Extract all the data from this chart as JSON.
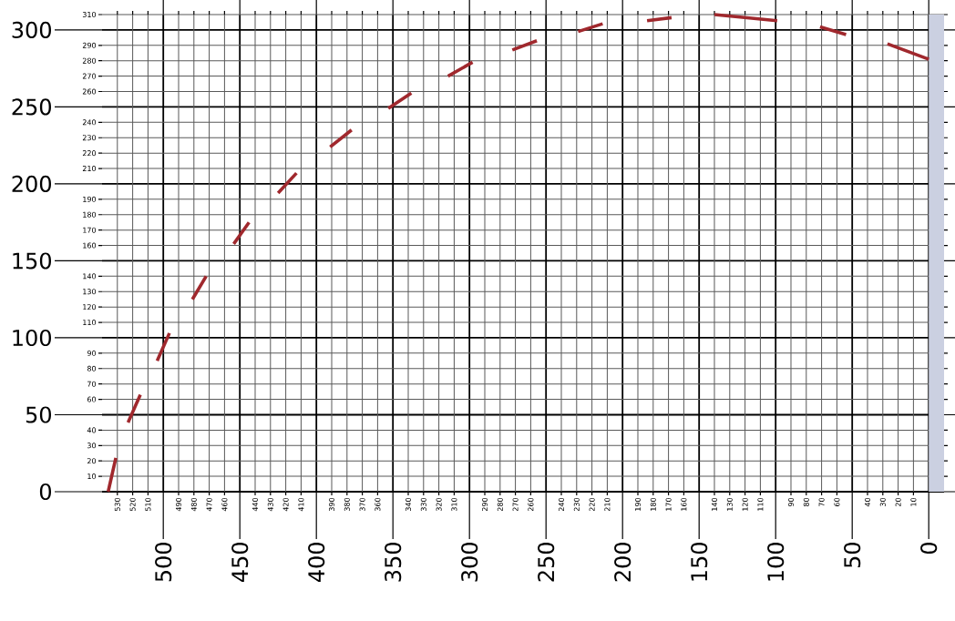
{
  "chart_data": {
    "type": "line",
    "color": "#a0282d",
    "xlim": [
      540,
      -10
    ],
    "ylim": [
      0,
      310
    ],
    "xticks": [
      530,
      520,
      510,
      490,
      480,
      470,
      460,
      440,
      430,
      420,
      410,
      390,
      380,
      370,
      360,
      340,
      330,
      320,
      310,
      290,
      280,
      270,
      260,
      240,
      230,
      220,
      210,
      190,
      180,
      170,
      160,
      140,
      130,
      120,
      110,
      90,
      80,
      70,
      60,
      40,
      30,
      20,
      10
    ],
    "yticks": [
      10,
      20,
      30,
      40,
      60,
      70,
      80,
      90,
      110,
      120,
      130,
      140,
      160,
      170,
      180,
      190,
      210,
      220,
      230,
      240,
      260,
      270,
      280,
      290,
      310
    ],
    "x2lim": [
      540,
      -10
    ],
    "x2ticks": [
      500,
      450,
      400,
      350,
      300,
      250,
      200,
      150,
      100,
      50,
      0
    ],
    "y2lim": [
      0,
      310
    ],
    "y2ticks": [
      0,
      50,
      100,
      150,
      200,
      250,
      300
    ],
    "grid": true,
    "bands": [
      {
        "axis": "x",
        "from": 0,
        "to": -10,
        "color": "#cbd0e1"
      }
    ],
    "series": [
      {
        "x": [
          536,
          531
        ],
        "values": [
          0,
          22
        ]
      },
      {
        "x": [
          523,
          515
        ],
        "values": [
          45,
          63
        ]
      },
      {
        "x": [
          504,
          496
        ],
        "values": [
          85,
          103
        ]
      },
      {
        "x": [
          481,
          472
        ],
        "values": [
          125,
          140
        ]
      },
      {
        "x": [
          454,
          444
        ],
        "values": [
          161,
          175
        ]
      },
      {
        "x": [
          425,
          413
        ],
        "values": [
          194,
          207
        ]
      },
      {
        "x": [
          391,
          377
        ],
        "values": [
          224,
          235
        ]
      },
      {
        "x": [
          353,
          338
        ],
        "values": [
          249,
          259
        ]
      },
      {
        "x": [
          314,
          298
        ],
        "values": [
          270,
          279
        ]
      },
      {
        "x": [
          272,
          256
        ],
        "values": [
          287,
          293
        ]
      },
      {
        "x": [
          229,
          213
        ],
        "values": [
          299,
          304
        ]
      },
      {
        "x": [
          184,
          168
        ],
        "values": [
          306,
          308
        ]
      },
      {
        "x": [
          140,
          99
        ],
        "values": [
          310,
          306
        ]
      },
      {
        "x": [
          71,
          54
        ],
        "values": [
          302,
          297
        ]
      },
      {
        "x": [
          27,
          0
        ],
        "values": [
          291,
          281
        ]
      }
    ]
  }
}
